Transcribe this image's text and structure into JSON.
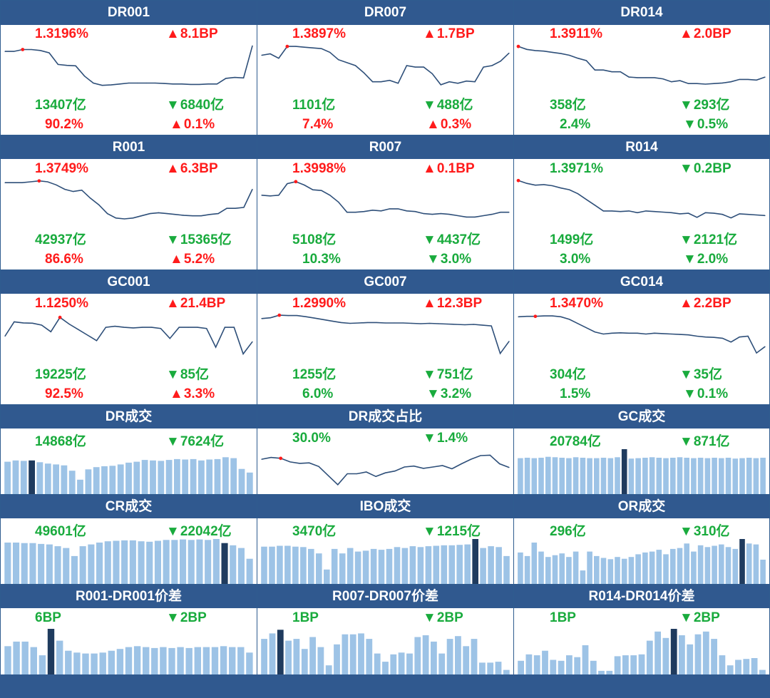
{
  "colors": {
    "header_bg": "#30598f",
    "up": "#ff1b1b",
    "down": "#19ab3d",
    "line": "#2e4f79",
    "bar": "#9dc3e6",
    "bar_highlight": "#1f3b5e",
    "dot": "#ff1b1b"
  },
  "chart_data": [
    {
      "title": "DR001",
      "type": "line",
      "rate": {
        "text": "1.3196%",
        "color": "up"
      },
      "rate_change": {
        "text": "8.1BP",
        "dir": "up"
      },
      "volume": {
        "text": "13407亿",
        "color": "down"
      },
      "volume_change": {
        "text": "6840亿",
        "dir": "down"
      },
      "share": {
        "text": "90.2%",
        "color": "up"
      },
      "share_change": {
        "text": "0.1%",
        "dir": "up"
      },
      "values": [
        1.268,
        1.268,
        1.272,
        1.272,
        1.27,
        1.265,
        1.24,
        1.238,
        1.237,
        1.215,
        1.2,
        1.195,
        1.196,
        1.198,
        1.2,
        1.2,
        1.2,
        1.2,
        1.199,
        1.198,
        1.198,
        1.197,
        1.197,
        1.198,
        1.198,
        1.21,
        1.212,
        1.211,
        1.28
      ],
      "ylim": [
        1.19,
        1.285
      ],
      "marker_index": 2
    },
    {
      "title": "DR007",
      "type": "line",
      "rate": {
        "text": "1.3897%",
        "color": "up"
      },
      "rate_change": {
        "text": "1.7BP",
        "dir": "up"
      },
      "volume": {
        "text": "1101亿",
        "color": "down"
      },
      "volume_change": {
        "text": "488亿",
        "dir": "down"
      },
      "share": {
        "text": "7.4%",
        "color": "up"
      },
      "share_change": {
        "text": "0.3%",
        "dir": "up"
      },
      "values": [
        1.374,
        1.376,
        1.37,
        1.386,
        1.386,
        1.385,
        1.384,
        1.383,
        1.378,
        1.368,
        1.364,
        1.36,
        1.35,
        1.338,
        1.338,
        1.34,
        1.336,
        1.36,
        1.358,
        1.358,
        1.349,
        1.334,
        1.338,
        1.336,
        1.339,
        1.338,
        1.358,
        1.36,
        1.366,
        1.377
      ],
      "ylim": [
        1.33,
        1.39
      ],
      "marker_index": 3
    },
    {
      "title": "DR014",
      "type": "line",
      "rate": {
        "text": "1.3911%",
        "color": "up"
      },
      "rate_change": {
        "text": "2.0BP",
        "dir": "up"
      },
      "volume": {
        "text": "358亿",
        "color": "down"
      },
      "volume_change": {
        "text": "293亿",
        "dir": "down"
      },
      "share": {
        "text": "2.4%",
        "color": "down"
      },
      "share_change": {
        "text": "0.5%",
        "dir": "down"
      },
      "values": [
        1.39,
        1.385,
        1.383,
        1.382,
        1.38,
        1.378,
        1.375,
        1.37,
        1.366,
        1.35,
        1.35,
        1.347,
        1.347,
        1.338,
        1.337,
        1.337,
        1.337,
        1.335,
        1.33,
        1.332,
        1.327,
        1.327,
        1.326,
        1.327,
        1.328,
        1.33,
        1.334,
        1.334,
        1.333,
        1.338
      ],
      "ylim": [
        1.32,
        1.395
      ],
      "marker_index": 0
    },
    {
      "title": "R001",
      "type": "line",
      "rate": {
        "text": "1.3749%",
        "color": "up"
      },
      "rate_change": {
        "text": "6.3BP",
        "dir": "up"
      },
      "volume": {
        "text": "42937亿",
        "color": "down"
      },
      "volume_change": {
        "text": "15365亿",
        "dir": "down"
      },
      "share": {
        "text": "86.6%",
        "color": "up"
      },
      "share_change": {
        "text": "5.2%",
        "dir": "up"
      },
      "values": [
        1.32,
        1.32,
        1.32,
        1.322,
        1.324,
        1.322,
        1.315,
        1.305,
        1.3,
        1.303,
        1.285,
        1.27,
        1.25,
        1.24,
        1.238,
        1.24,
        1.245,
        1.25,
        1.252,
        1.25,
        1.248,
        1.246,
        1.245,
        1.245,
        1.248,
        1.25,
        1.262,
        1.262,
        1.264,
        1.305
      ],
      "ylim": [
        1.23,
        1.33
      ],
      "marker_index": 4
    },
    {
      "title": "R007",
      "type": "line",
      "rate": {
        "text": "1.3998%",
        "color": "up"
      },
      "rate_change": {
        "text": "0.1BP",
        "dir": "up"
      },
      "volume": {
        "text": "5108亿",
        "color": "down"
      },
      "volume_change": {
        "text": "4437亿",
        "dir": "down"
      },
      "share": {
        "text": "10.3%",
        "color": "down"
      },
      "share_change": {
        "text": "3.0%",
        "dir": "down"
      },
      "values": [
        1.38,
        1.379,
        1.38,
        1.397,
        1.4,
        1.395,
        1.388,
        1.387,
        1.38,
        1.37,
        1.355,
        1.355,
        1.356,
        1.358,
        1.357,
        1.36,
        1.36,
        1.357,
        1.356,
        1.353,
        1.352,
        1.353,
        1.352,
        1.35,
        1.348,
        1.348,
        1.35,
        1.352,
        1.355,
        1.355
      ],
      "ylim": [
        1.34,
        1.405
      ],
      "marker_index": 4
    },
    {
      "title": "R014",
      "type": "line",
      "rate": {
        "text": "1.3971%",
        "color": "down"
      },
      "rate_change": {
        "text": "0.2BP",
        "dir": "down"
      },
      "volume": {
        "text": "1499亿",
        "color": "down"
      },
      "volume_change": {
        "text": "2121亿",
        "dir": "down"
      },
      "share": {
        "text": "3.0%",
        "color": "down"
      },
      "share_change": {
        "text": "2.0%",
        "dir": "down"
      },
      "values": [
        1.398,
        1.393,
        1.39,
        1.391,
        1.389,
        1.385,
        1.382,
        1.375,
        1.365,
        1.355,
        1.345,
        1.345,
        1.344,
        1.345,
        1.342,
        1.345,
        1.344,
        1.343,
        1.342,
        1.34,
        1.341,
        1.334,
        1.342,
        1.341,
        1.339,
        1.333,
        1.34,
        1.339,
        1.338,
        1.337
      ],
      "ylim": [
        1.325,
        1.402
      ],
      "marker_index": 0
    },
    {
      "title": "GC001",
      "type": "line",
      "rate": {
        "text": "1.1250%",
        "color": "up"
      },
      "rate_change": {
        "text": "21.4BP",
        "dir": "up"
      },
      "volume": {
        "text": "19225亿",
        "color": "down"
      },
      "volume_change": {
        "text": "85亿",
        "dir": "down"
      },
      "share": {
        "text": "92.5%",
        "color": "up"
      },
      "share_change": {
        "text": "3.3%",
        "dir": "up"
      },
      "values": [
        0.99,
        1.12,
        1.11,
        1.108,
        1.09,
        1.03,
        1.16,
        1.1,
        1.05,
        1.0,
        0.95,
        1.07,
        1.08,
        1.07,
        1.065,
        1.07,
        1.07,
        1.06,
        0.97,
        1.07,
        1.07,
        1.07,
        1.06,
        0.89,
        1.07,
        1.07,
        0.83,
        0.94
      ],
      "ylim": [
        0.8,
        1.2
      ],
      "marker_index": 6
    },
    {
      "title": "GC007",
      "type": "line",
      "rate": {
        "text": "1.2990%",
        "color": "up"
      },
      "rate_change": {
        "text": "12.3BP",
        "dir": "up"
      },
      "volume": {
        "text": "1255亿",
        "color": "down"
      },
      "volume_change": {
        "text": "751亿",
        "dir": "down"
      },
      "share": {
        "text": "6.0%",
        "color": "down"
      },
      "share_change": {
        "text": "3.2%",
        "dir": "down"
      },
      "values": [
        1.295,
        1.297,
        1.304,
        1.303,
        1.303,
        1.3,
        1.296,
        1.292,
        1.288,
        1.284,
        1.282,
        1.283,
        1.284,
        1.284,
        1.283,
        1.283,
        1.283,
        1.282,
        1.281,
        1.282,
        1.281,
        1.28,
        1.279,
        1.278,
        1.279,
        1.277,
        1.275,
        1.2,
        1.233
      ],
      "ylim": [
        1.19,
        1.31
      ],
      "marker_index": 2
    },
    {
      "title": "GC014",
      "type": "line",
      "rate": {
        "text": "1.3470%",
        "color": "up"
      },
      "rate_change": {
        "text": "2.2BP",
        "dir": "up"
      },
      "volume": {
        "text": "304亿",
        "color": "down"
      },
      "volume_change": {
        "text": "35亿",
        "dir": "down"
      },
      "share": {
        "text": "1.5%",
        "color": "down"
      },
      "share_change": {
        "text": "0.1%",
        "dir": "down"
      },
      "values": [
        1.346,
        1.347,
        1.347,
        1.348,
        1.348,
        1.346,
        1.34,
        1.33,
        1.32,
        1.31,
        1.305,
        1.307,
        1.308,
        1.307,
        1.307,
        1.305,
        1.307,
        1.306,
        1.305,
        1.304,
        1.303,
        1.3,
        1.298,
        1.297,
        1.295,
        1.286,
        1.298,
        1.3,
        1.26,
        1.275
      ],
      "ylim": [
        1.25,
        1.355
      ],
      "marker_index": 2
    },
    {
      "title": "DR成交",
      "type": "bar",
      "volume": {
        "text": "14868亿",
        "color": "down"
      },
      "volume_change": {
        "text": "7624亿",
        "dir": "down"
      },
      "values": [
        0.72,
        0.75,
        0.74,
        0.75,
        0.71,
        0.68,
        0.66,
        0.64,
        0.52,
        0.32,
        0.55,
        0.6,
        0.62,
        0.63,
        0.66,
        0.7,
        0.72,
        0.76,
        0.75,
        0.74,
        0.76,
        0.78,
        0.77,
        0.78,
        0.75,
        0.77,
        0.78,
        0.82,
        0.8,
        0.56,
        0.48
      ],
      "ylim": [
        0,
        1
      ],
      "highlight_index": 3
    },
    {
      "title": "DR成交占比",
      "type": "line",
      "share": {
        "text": "30.0%",
        "color": "down"
      },
      "share_change": {
        "text": "1.4%",
        "dir": "down"
      },
      "values": [
        29.6,
        30.0,
        29.8,
        29.0,
        28.7,
        28.8,
        28.0,
        26.0,
        24.0,
        26.4,
        26.4,
        26.8,
        25.8,
        26.6,
        27.0,
        27.9,
        28.1,
        27.6,
        27.9,
        28.2,
        27.5,
        28.6,
        29.6,
        30.4,
        30.5,
        28.6,
        27.8
      ],
      "ylim": [
        23.5,
        31.5
      ],
      "marker_index": 2
    },
    {
      "title": "GC成交",
      "type": "bar",
      "volume": {
        "text": "20784亿",
        "color": "down"
      },
      "volume_change": {
        "text": "871亿",
        "dir": "down"
      },
      "values": [
        0.8,
        0.81,
        0.8,
        0.81,
        0.83,
        0.82,
        0.81,
        0.8,
        0.82,
        0.81,
        0.8,
        0.8,
        0.81,
        0.8,
        0.82,
        1.0,
        0.79,
        0.8,
        0.81,
        0.82,
        0.81,
        0.8,
        0.81,
        0.82,
        0.81,
        0.8,
        0.81,
        0.8,
        0.81,
        0.8,
        0.81,
        0.79,
        0.8,
        0.81,
        0.8,
        0.81
      ],
      "ylim": [
        0,
        1
      ],
      "highlight_index": 15
    },
    {
      "title": "CR成交",
      "type": "bar",
      "volume": {
        "text": "49601亿",
        "color": "down"
      },
      "volume_change": {
        "text": "22042亿",
        "dir": "down"
      },
      "values": [
        0.92,
        0.92,
        0.91,
        0.91,
        0.89,
        0.88,
        0.84,
        0.8,
        0.62,
        0.84,
        0.88,
        0.92,
        0.95,
        0.96,
        0.97,
        0.97,
        0.95,
        0.94,
        0.96,
        0.98,
        0.98,
        0.99,
        0.98,
        0.99,
        0.98,
        1.0,
        0.91,
        0.86,
        0.8,
        0.56
      ],
      "ylim": [
        0,
        1
      ],
      "highlight_index": 26
    },
    {
      "title": "IBO成交",
      "type": "bar",
      "volume": {
        "text": "3470亿",
        "color": "down"
      },
      "volume_change": {
        "text": "1215亿",
        "dir": "down"
      },
      "values": [
        0.83,
        0.83,
        0.85,
        0.85,
        0.83,
        0.82,
        0.78,
        0.68,
        0.32,
        0.78,
        0.68,
        0.8,
        0.72,
        0.74,
        0.78,
        0.76,
        0.78,
        0.82,
        0.8,
        0.84,
        0.82,
        0.84,
        0.85,
        0.86,
        0.86,
        0.87,
        0.88,
        1.0,
        0.8,
        0.84,
        0.82,
        0.62
      ],
      "ylim": [
        0,
        1
      ],
      "highlight_index": 27
    },
    {
      "title": "OR成交",
      "type": "bar",
      "volume": {
        "text": "296亿",
        "color": "down"
      },
      "volume_change": {
        "text": "310亿",
        "dir": "down"
      },
      "values": [
        0.7,
        0.62,
        0.92,
        0.72,
        0.6,
        0.64,
        0.68,
        0.6,
        0.72,
        0.3,
        0.72,
        0.62,
        0.58,
        0.55,
        0.6,
        0.56,
        0.6,
        0.66,
        0.7,
        0.72,
        0.76,
        0.66,
        0.78,
        0.8,
        0.9,
        0.72,
        0.86,
        0.82,
        0.85,
        0.88,
        0.82,
        0.78,
        1.0,
        0.9,
        0.88,
        0.54
      ],
      "ylim": [
        0,
        1
      ],
      "highlight_index": 32
    },
    {
      "title": "R001-DR001价差",
      "type": "bar",
      "volume": {
        "text": "6BP",
        "color": "down"
      },
      "volume_change": {
        "text": "2BP",
        "dir": "down"
      },
      "values": [
        0.62,
        0.72,
        0.72,
        0.6,
        0.42,
        1.0,
        0.74,
        0.52,
        0.48,
        0.46,
        0.46,
        0.48,
        0.52,
        0.56,
        0.6,
        0.62,
        0.6,
        0.58,
        0.6,
        0.58,
        0.6,
        0.58,
        0.6,
        0.6,
        0.6,
        0.62,
        0.6,
        0.6,
        0.48
      ],
      "ylim": [
        0,
        1
      ],
      "highlight_index": 5
    },
    {
      "title": "R007-DR007价差",
      "type": "bar",
      "volume": {
        "text": "1BP",
        "color": "down"
      },
      "volume_change": {
        "text": "2BP",
        "dir": "down"
      },
      "values": [
        0.78,
        0.9,
        0.98,
        0.74,
        0.78,
        0.56,
        0.82,
        0.6,
        0.2,
        0.66,
        0.88,
        0.88,
        0.9,
        0.78,
        0.46,
        0.28,
        0.44,
        0.48,
        0.46,
        0.82,
        0.86,
        0.72,
        0.46,
        0.78,
        0.84,
        0.62,
        0.78,
        0.26,
        0.26,
        0.28,
        0.1
      ],
      "ylim": [
        0,
        1
      ],
      "highlight_index": 2
    },
    {
      "title": "R014-DR014价差",
      "type": "bar",
      "volume": {
        "text": "1BP",
        "color": "down"
      },
      "volume_change": {
        "text": "2BP",
        "dir": "down"
      },
      "values": [
        0.3,
        0.44,
        0.42,
        0.52,
        0.32,
        0.3,
        0.42,
        0.38,
        0.64,
        0.3,
        0.08,
        0.08,
        0.4,
        0.42,
        0.42,
        0.44,
        0.74,
        0.94,
        0.8,
        1.0,
        0.86,
        0.66,
        0.88,
        0.94,
        0.78,
        0.42,
        0.2,
        0.32,
        0.34,
        0.36,
        0.1
      ],
      "ylim": [
        0,
        1
      ],
      "highlight_index": 19
    }
  ]
}
